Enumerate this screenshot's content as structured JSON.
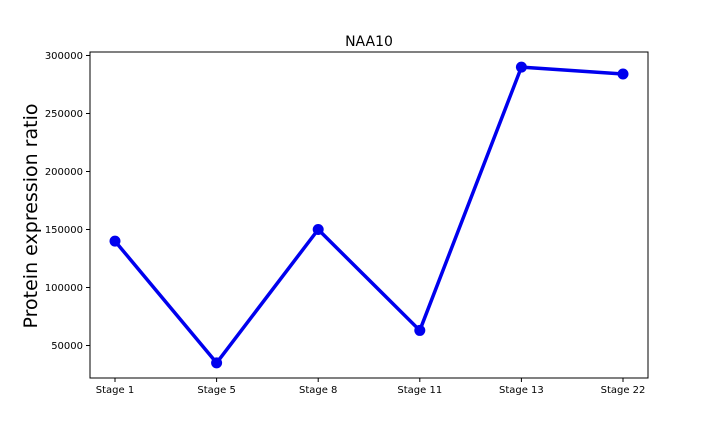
{
  "chart_data": {
    "type": "line",
    "title": "NAA10",
    "xlabel": "",
    "ylabel": "Protein expression ratio",
    "categories": [
      "Stage 1",
      "Stage 5",
      "Stage 8",
      "Stage 11",
      "Stage 13",
      "Stage 22"
    ],
    "series": [
      {
        "values": [
          140000,
          35000,
          150000,
          63000,
          290000,
          284000
        ],
        "color": "#0000ee"
      }
    ],
    "yticks": [
      50000,
      100000,
      150000,
      200000,
      250000,
      300000
    ],
    "ytick_labels": [
      "50000",
      "100000",
      "150000",
      "200000",
      "250000",
      "300000"
    ],
    "ylim": [
      22000,
      303000
    ],
    "grid": false,
    "legend": "none"
  }
}
